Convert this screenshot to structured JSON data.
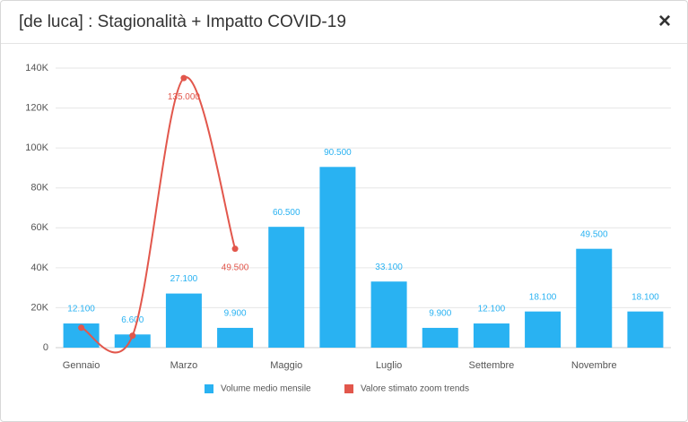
{
  "dialog": {
    "title": "[de luca] : Stagionalità + Impatto COVID-19",
    "close_label": "×"
  },
  "chart_data": {
    "type": "bar",
    "categories": [
      "Gennaio",
      null,
      "Marzo",
      null,
      "Maggio",
      null,
      "Luglio",
      null,
      "Settembre",
      null,
      "Novembre",
      null
    ],
    "series": [
      {
        "name": "Volume medio mensile",
        "type": "bar",
        "color": "#29b2f2",
        "values": [
          12100,
          6600,
          27100,
          9900,
          60500,
          90500,
          33100,
          9900,
          12100,
          18100,
          49500,
          18100
        ],
        "value_labels": [
          "12.100",
          "6.600",
          "27.100",
          "9.900",
          "60.500",
          "90.500",
          "33.100",
          "9.900",
          "12.100",
          "18.100",
          "49.500",
          "18.100"
        ]
      },
      {
        "name": "Valore stimato zoom trends",
        "type": "line",
        "color": "#e2574c",
        "values": [
          10000,
          6000,
          135000,
          49500,
          null,
          null,
          null,
          null,
          null,
          null,
          null,
          null
        ],
        "value_labels": [
          null,
          null,
          "135.000",
          "49.500",
          null,
          null,
          null,
          null,
          null,
          null,
          null,
          null
        ]
      }
    ],
    "ylim": [
      0,
      140000
    ],
    "yticks": [
      0,
      {
        "value": 20000,
        "label": "20K"
      },
      {
        "value": 40000,
        "label": "40K"
      },
      {
        "value": 60000,
        "label": "60K"
      },
      {
        "value": 80000,
        "label": "80K"
      },
      {
        "value": 100000,
        "label": "100K"
      },
      {
        "value": 120000,
        "label": "120K"
      },
      {
        "value": 140000,
        "label": "140K"
      }
    ],
    "grid": true,
    "legend": "bottom"
  }
}
